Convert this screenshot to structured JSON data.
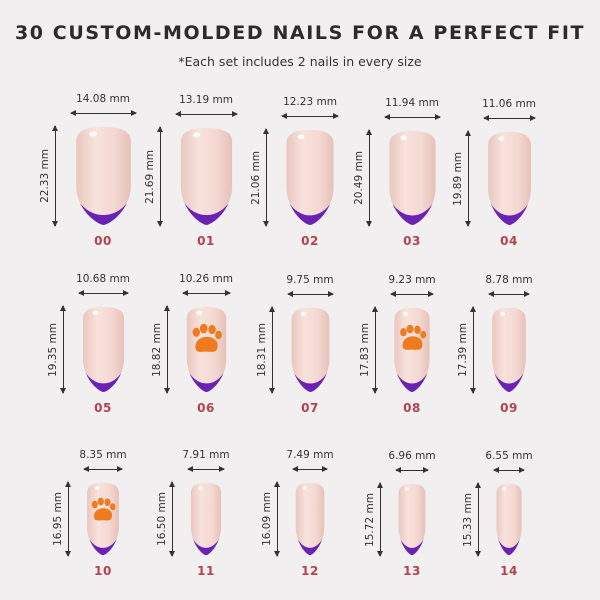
{
  "header": {
    "title": "30 CUSTOM-MOLDED NAILS FOR A PERFECT FIT",
    "subtitle": "*Each set includes 2 nails in every size"
  },
  "colors": {
    "background": "#f1efef",
    "nail_base": "#f3d7d0",
    "french_tip": "#6a22b5",
    "paw_print": "#f07a1e",
    "size_label": "#b5424c"
  },
  "nails": [
    {
      "size": "00",
      "width": "14.08 mm",
      "height": "22.33 mm",
      "paw": false
    },
    {
      "size": "01",
      "width": "13.19 mm",
      "height": "21.69 mm",
      "paw": false
    },
    {
      "size": "02",
      "width": "12.23 mm",
      "height": "21.06 mm",
      "paw": false
    },
    {
      "size": "03",
      "width": "11.94 mm",
      "height": "20.49 mm",
      "paw": false
    },
    {
      "size": "04",
      "width": "11.06 mm",
      "height": "19.89 mm",
      "paw": false
    },
    {
      "size": "05",
      "width": "10.68 mm",
      "height": "19.35 mm",
      "paw": false
    },
    {
      "size": "06",
      "width": "10.26 mm",
      "height": "18.82 mm",
      "paw": true,
      "icon": "paw-print-icon"
    },
    {
      "size": "07",
      "width": "9.75 mm",
      "height": "18.31 mm",
      "paw": false
    },
    {
      "size": "08",
      "width": "9.23 mm",
      "height": "17.83 mm",
      "paw": true,
      "icon": "paw-print-icon"
    },
    {
      "size": "09",
      "width": "8.78 mm",
      "height": "17.39 mm",
      "paw": false
    },
    {
      "size": "10",
      "width": "8.35 mm",
      "height": "16.95 mm",
      "paw": true,
      "icon": "paw-print-icon"
    },
    {
      "size": "11",
      "width": "7.91 mm",
      "height": "16.50 mm",
      "paw": false
    },
    {
      "size": "12",
      "width": "7.49 mm",
      "height": "16.09 mm",
      "paw": false
    },
    {
      "size": "13",
      "width": "6.96 mm",
      "height": "15.72 mm",
      "paw": false
    },
    {
      "size": "14",
      "width": "6.55 mm",
      "height": "15.33 mm",
      "paw": false
    }
  ]
}
